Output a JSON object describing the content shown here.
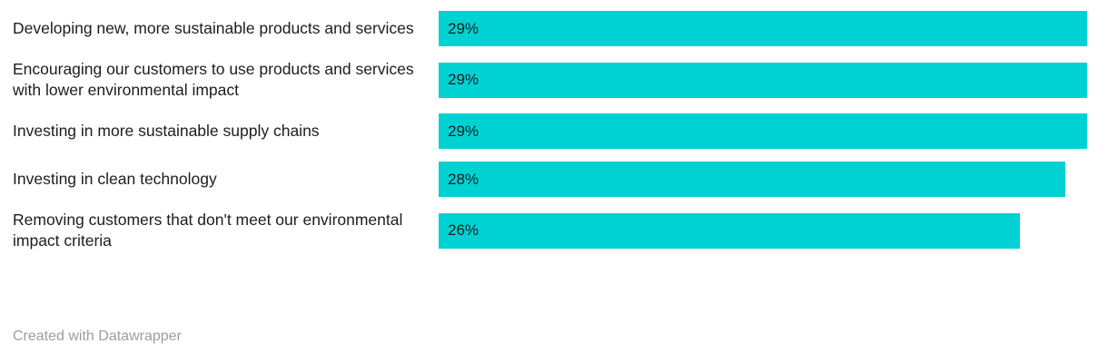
{
  "chart_data": {
    "type": "bar",
    "orientation": "horizontal",
    "title": "",
    "xlabel": "",
    "ylabel": "",
    "xlim": [
      0,
      29.5
    ],
    "grid": false,
    "legend": "none",
    "categories": [
      "Developing new, more sustainable products and services",
      "Encouraging our customers to use products and services with lower environmental impact",
      "Investing in more sustainable supply chains",
      "Investing in clean technology",
      "Removing customers that don't meet our environmental impact criteria"
    ],
    "values": [
      29,
      29,
      29,
      28,
      26
    ],
    "value_labels": [
      "29%",
      "29%",
      "29%",
      "28%",
      "26%"
    ]
  },
  "colors": {
    "bar": "#00d2d3",
    "category_text": "#1d1d1d",
    "value_text": "#1d1d1d",
    "footer_text": "#9d9d9d"
  },
  "footer": {
    "credit": "Created with Datawrapper"
  }
}
